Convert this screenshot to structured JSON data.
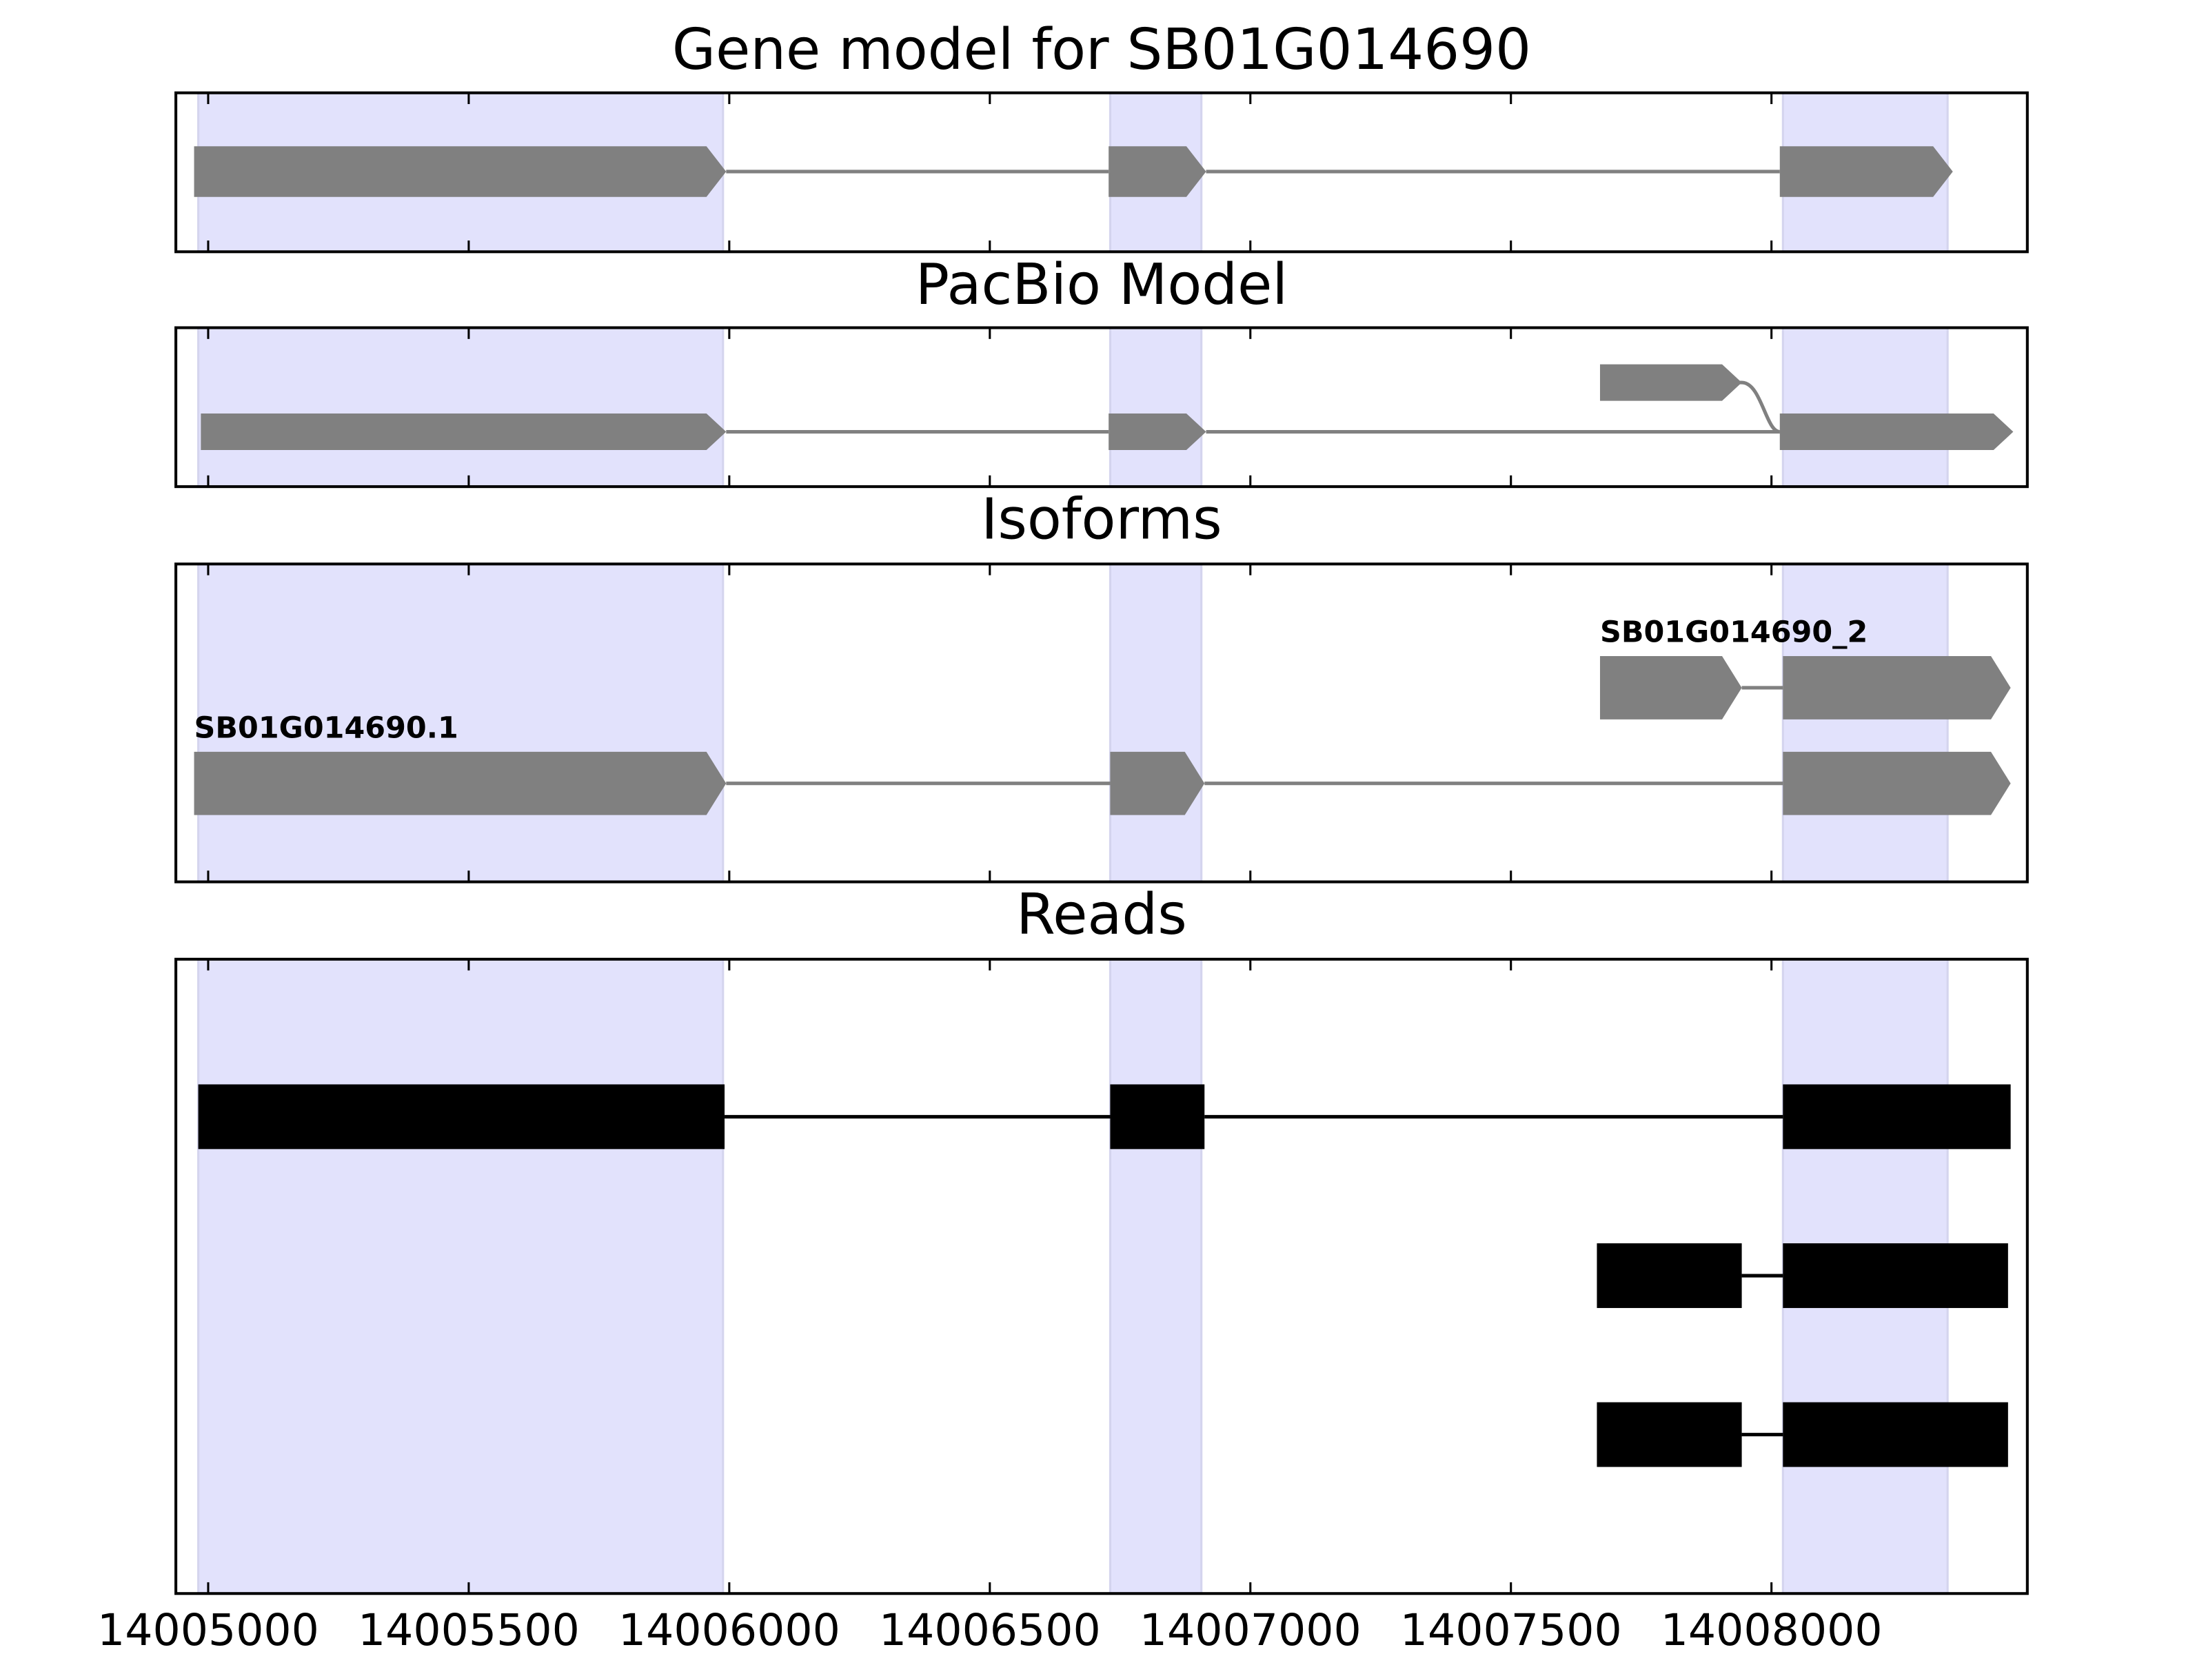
{
  "chart_data": [
    {
      "type": "gene-track",
      "title": "Gene model for SB01G014690",
      "xlim": [
        14004938,
        14008491
      ],
      "style": "arrow",
      "color": "#808080",
      "highlight": [
        [
          14004981,
          14005988
        ],
        [
          14006731,
          14006906
        ],
        [
          14008022,
          14008338
        ]
      ],
      "tracks": [
        {
          "exons": [
            [
              14004973,
              14005994
            ],
            [
              14006728,
              14006915
            ],
            [
              14008016,
              14008348
            ]
          ]
        }
      ]
    },
    {
      "type": "gene-track",
      "title": "PacBio Model",
      "xlim": [
        14004938,
        14008491
      ],
      "style": "arrow",
      "color": "#808080",
      "highlight": [
        [
          14004981,
          14005988
        ],
        [
          14006731,
          14006906
        ],
        [
          14008022,
          14008338
        ]
      ],
      "tracks": [
        {
          "exons": [
            [
              14007671,
              14007943
            ]
          ]
        },
        {
          "exons": [
            [
              14004986,
              14005994
            ],
            [
              14006728,
              14006915
            ],
            [
              14008016,
              14008464
            ]
          ]
        }
      ]
    },
    {
      "type": "gene-track",
      "title": "Isoforms",
      "xlim": [
        14004938,
        14008491
      ],
      "style": "arrow",
      "color": "#808080",
      "highlight": [
        [
          14004981,
          14005988
        ],
        [
          14006731,
          14006906
        ],
        [
          14008022,
          14008338
        ]
      ],
      "tracks": [
        {
          "name": "SB01G014690_2",
          "exons": [
            [
              14007671,
              14007943
            ],
            [
              14008022,
              14008459
            ]
          ]
        },
        {
          "name": "SB01G014690.1",
          "exons": [
            [
              14004973,
              14005994
            ],
            [
              14006731,
              14006912
            ],
            [
              14008022,
              14008459
            ]
          ]
        }
      ]
    },
    {
      "type": "gene-track",
      "title": "Reads",
      "xlim": [
        14004938,
        14008491
      ],
      "style": "box",
      "color": "#000000",
      "highlight": [
        [
          14004981,
          14005988
        ],
        [
          14006731,
          14006906
        ],
        [
          14008022,
          14008338
        ]
      ],
      "xticks": [
        14005000,
        14005500,
        14006000,
        14006500,
        14007000,
        14007500,
        14008000
      ],
      "tracks": [
        {
          "exons": [
            [
              14004981,
              14005991
            ],
            [
              14006731,
              14006912
            ],
            [
              14008022,
              14008459
            ]
          ]
        },
        {
          "exons": [
            [
              14007665,
              14007943
            ],
            [
              14008022,
              14008454
            ]
          ]
        },
        {
          "exons": [
            [
              14007665,
              14007943
            ],
            [
              14008022,
              14008454
            ]
          ]
        }
      ]
    }
  ]
}
